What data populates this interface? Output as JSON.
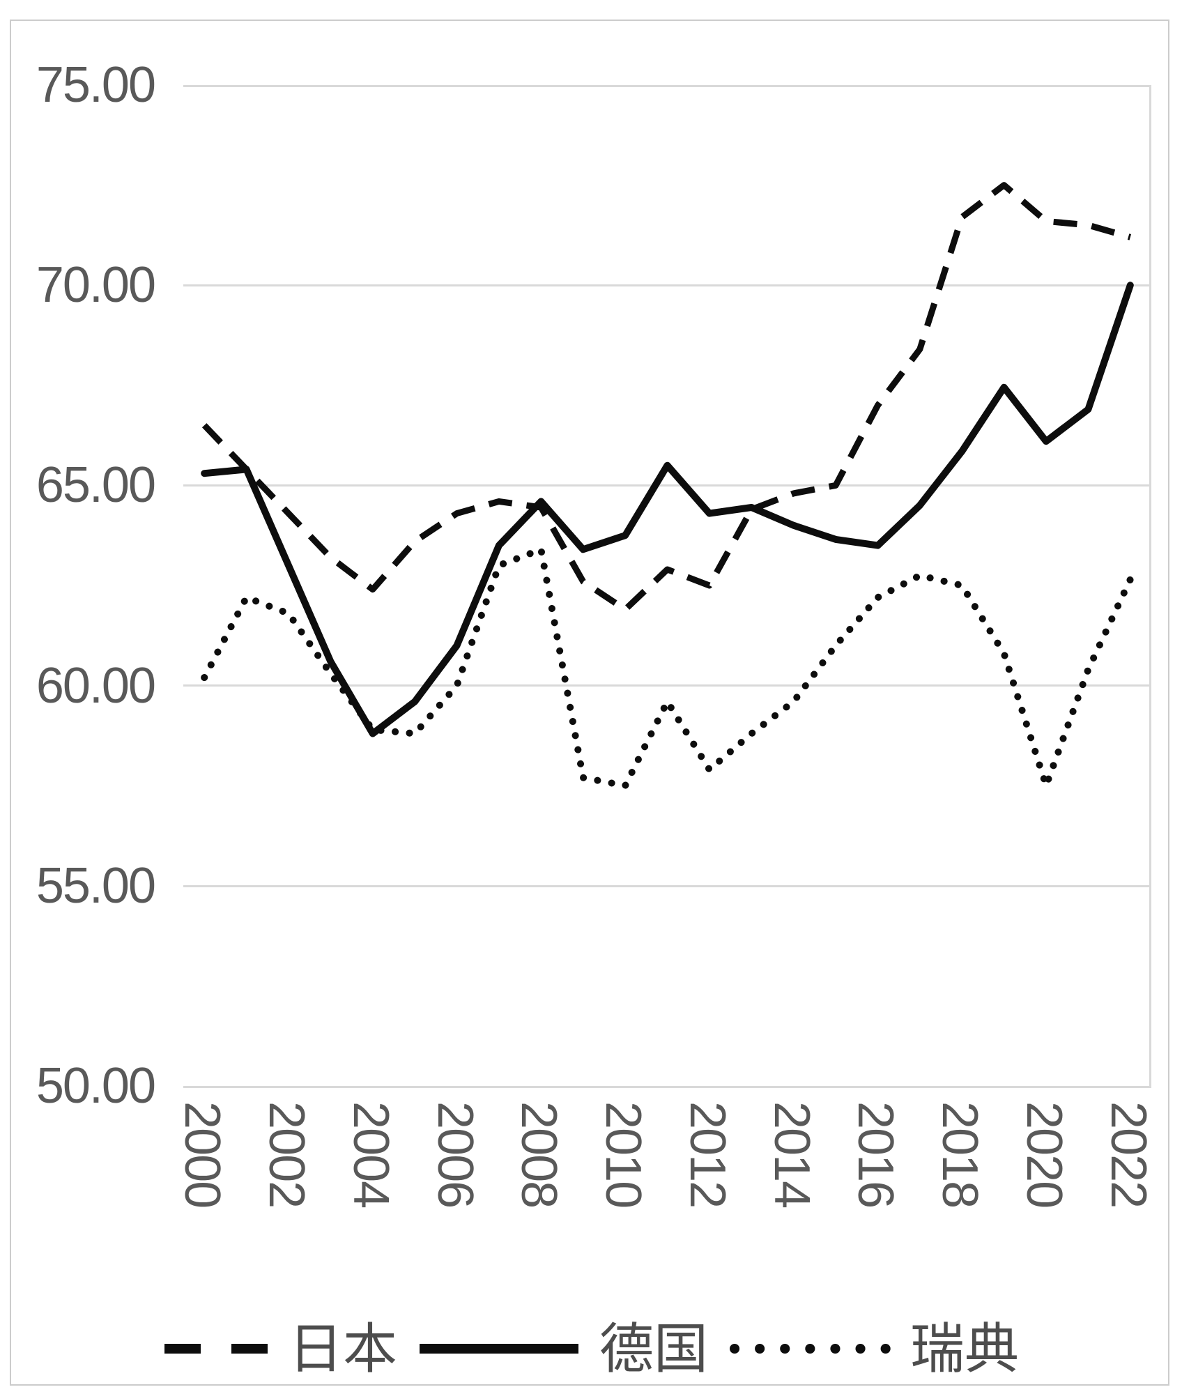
{
  "chart_data": {
    "type": "line",
    "title": "",
    "xlabel": "",
    "ylabel": "",
    "ylim": [
      50,
      75
    ],
    "y_tick_step": 5,
    "grid": "horizontal-only",
    "gridline_color": "#d9d9d9",
    "line_color": "#0d0d0d",
    "tick_label_color": "#595959",
    "legend_position": "bottom",
    "x": [
      2000,
      2001,
      2002,
      2003,
      2004,
      2005,
      2006,
      2007,
      2008,
      2009,
      2010,
      2011,
      2012,
      2013,
      2014,
      2015,
      2016,
      2017,
      2018,
      2019,
      2020,
      2021,
      2022
    ],
    "x_tick_labels": [
      "2000",
      "2002",
      "2004",
      "2006",
      "2008",
      "2010",
      "2012",
      "2014",
      "2016",
      "2018",
      "2020",
      "2022"
    ],
    "y_tick_labels": [
      "75.00",
      "70.00",
      "65.00",
      "60.00",
      "55.00",
      "50.00"
    ],
    "series": [
      {
        "name": "日本",
        "style": "dashed",
        "values": [
          66.5,
          65.4,
          64.3,
          63.2,
          62.4,
          63.6,
          64.3,
          64.6,
          64.45,
          62.6,
          61.9,
          62.9,
          62.5,
          64.4,
          64.8,
          65.0,
          67.0,
          68.4,
          71.7,
          72.5,
          71.6,
          71.5,
          71.2
        ]
      },
      {
        "name": "德国",
        "style": "solid",
        "values": [
          65.3,
          65.4,
          63.0,
          60.6,
          58.8,
          59.6,
          61.0,
          63.5,
          64.6,
          63.4,
          63.75,
          65.5,
          64.3,
          64.45,
          64.0,
          63.65,
          63.5,
          64.5,
          65.85,
          67.45,
          66.1,
          66.9,
          70.0
        ]
      },
      {
        "name": "瑞典",
        "style": "dotted",
        "values": [
          60.2,
          62.2,
          61.8,
          60.3,
          58.9,
          58.8,
          60.0,
          63.0,
          63.4,
          57.7,
          57.5,
          59.6,
          57.9,
          58.8,
          59.6,
          61.0,
          62.2,
          62.75,
          62.5,
          60.8,
          57.5,
          60.4,
          62.65
        ]
      }
    ]
  }
}
